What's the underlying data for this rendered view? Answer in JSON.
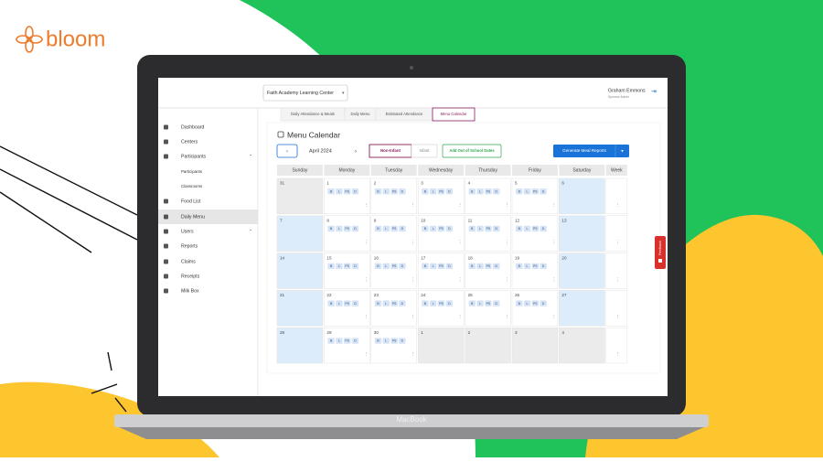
{
  "brand": "bloom",
  "laptop_label": "MacBook",
  "header": {
    "center": "Faith Academy Learning Center",
    "user_name": "Graham Emmons",
    "user_role": "Sponsor Admin"
  },
  "tabs": [
    "Daily Attendance & Meals",
    "Daily Menu",
    "Estimated Attendance",
    "Menu Calendar"
  ],
  "sidebar": [
    "Dashboard",
    "Centers",
    "Participants",
    "Participants",
    "Classrooms",
    "Food List",
    "Daily Menu",
    "Users",
    "Reports",
    "Claims",
    "Receipts",
    "Milk Box"
  ],
  "calendar": {
    "title": "Menu Calendar",
    "month": "April 2024",
    "toggle": [
      "Non-Infant",
      "Infant"
    ],
    "add_button": "Add Out of School Dates",
    "generate_button": "Generate Meal Reports",
    "weekdays": [
      "Sunday",
      "Monday",
      "Tuesday",
      "Wednesday",
      "Thursday",
      "Friday",
      "Saturday",
      "Week"
    ],
    "weeks": [
      [
        31,
        1,
        2,
        3,
        4,
        5,
        6
      ],
      [
        7,
        8,
        9,
        10,
        11,
        12,
        13
      ],
      [
        14,
        15,
        16,
        17,
        18,
        19,
        20
      ],
      [
        21,
        22,
        23,
        24,
        25,
        26,
        27
      ],
      [
        28,
        29,
        30,
        1,
        2,
        3,
        4
      ]
    ],
    "meal_codes": [
      "B",
      "L",
      "PS",
      "D"
    ]
  },
  "feedback": "Feedback"
}
